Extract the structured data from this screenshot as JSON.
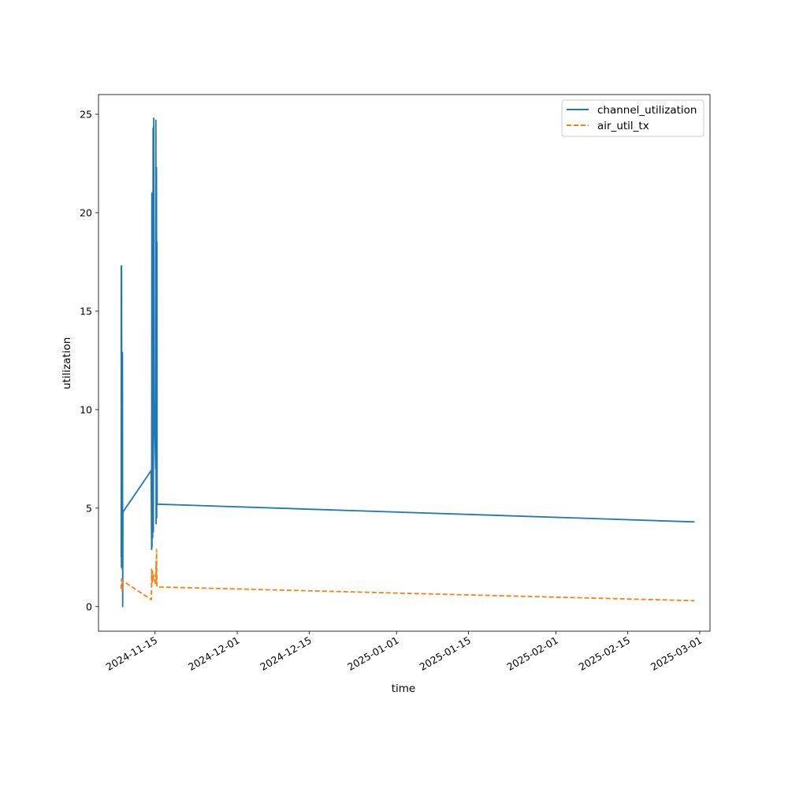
{
  "chart_data": {
    "type": "line",
    "xlabel": "time",
    "ylabel": "utilization",
    "x_type": "date",
    "xlim": [
      "2024-11-04",
      "2025-03-03"
    ],
    "ylim": [
      -1.25,
      26
    ],
    "xticks": [
      "2024-11-15",
      "2024-12-01",
      "2024-12-15",
      "2025-01-01",
      "2025-01-15",
      "2025-02-01",
      "2025-02-15",
      "2025-03-01"
    ],
    "yticks": [
      0,
      5,
      10,
      15,
      20,
      25
    ],
    "grid": false,
    "legend_position": "top-right",
    "series": [
      {
        "name": "channel_utilization",
        "color": "#1f77b4",
        "style": "solid",
        "points": [
          [
            "2024-11-08T10:00",
            2.5
          ],
          [
            "2024-11-08T10:30",
            17.3
          ],
          [
            "2024-11-08T11:00",
            2.0
          ],
          [
            "2024-11-08T12:00",
            17.3
          ],
          [
            "2024-11-08T13:00",
            3.5
          ],
          [
            "2024-11-08T14:00",
            12.5
          ],
          [
            "2024-11-08T15:00",
            1.9
          ],
          [
            "2024-11-08T16:00",
            12.9
          ],
          [
            "2024-11-08T17:00",
            0.0
          ],
          [
            "2024-11-08T18:00",
            4.8
          ],
          [
            "2024-11-14T06:00",
            6.9
          ],
          [
            "2024-11-14T08:00",
            2.9
          ],
          [
            "2024-11-14T09:00",
            21.0
          ],
          [
            "2024-11-14T10:00",
            3.0
          ],
          [
            "2024-11-14T12:00",
            18.8
          ],
          [
            "2024-11-14T13:00",
            3.5
          ],
          [
            "2024-11-14T15:00",
            24.3
          ],
          [
            "2024-11-14T16:00",
            3.8
          ],
          [
            "2024-11-14T18:00",
            24.8
          ],
          [
            "2024-11-14T20:00",
            10.5
          ],
          [
            "2024-11-15T03:00",
            7.0
          ],
          [
            "2024-11-15T04:00",
            24.7
          ],
          [
            "2024-11-15T05:00",
            4.2
          ],
          [
            "2024-11-15T07:00",
            22.3
          ],
          [
            "2024-11-15T08:00",
            4.5
          ],
          [
            "2024-11-15T09:00",
            18.5
          ],
          [
            "2024-11-15T10:00",
            5.2
          ],
          [
            "2025-02-28T00:00",
            4.3
          ]
        ]
      },
      {
        "name": "air_util_tx",
        "color": "#ff7f0e",
        "style": "dashed",
        "points": [
          [
            "2024-11-08T10:00",
            0.9
          ],
          [
            "2024-11-08T12:00",
            1.4
          ],
          [
            "2024-11-08T14:00",
            0.8
          ],
          [
            "2024-11-08T16:00",
            1.3
          ],
          [
            "2024-11-08T18:00",
            1.3
          ],
          [
            "2024-11-14T07:00",
            0.35
          ],
          [
            "2024-11-14T08:00",
            1.9
          ],
          [
            "2024-11-14T10:00",
            1.2
          ],
          [
            "2024-11-14T12:00",
            1.8
          ],
          [
            "2024-11-14T14:00",
            1.3
          ],
          [
            "2024-11-14T18:00",
            1.6
          ],
          [
            "2024-11-15T03:00",
            1.1
          ],
          [
            "2024-11-15T05:00",
            2.3
          ],
          [
            "2024-11-15T06:00",
            1.3
          ],
          [
            "2024-11-15T07:00",
            2.9
          ],
          [
            "2024-11-15T09:00",
            1.0
          ],
          [
            "2025-02-28T00:00",
            0.3
          ]
        ]
      }
    ]
  }
}
